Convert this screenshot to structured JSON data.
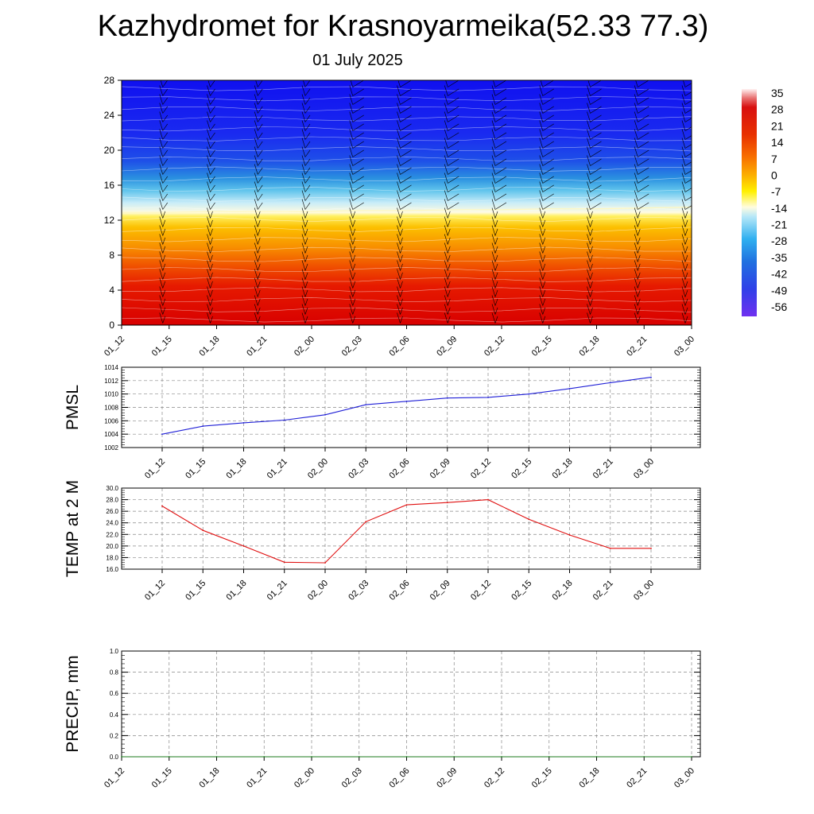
{
  "title": "Kazhydromet for Krasnoyarmeika(52.33 77.3)",
  "subtitle": "01 July 2025",
  "colors": {
    "pmsl_line": "#1f1fd6",
    "temp_line": "#e01010",
    "precip_line": "#1a7a1a",
    "grid": "#888888"
  },
  "chart_data": [
    {
      "type": "heatmap",
      "name": "cross-section",
      "x_ticks": [
        "01_12",
        "01_15",
        "01_18",
        "01_21",
        "02_00",
        "02_03",
        "02_06",
        "02_09",
        "02_12",
        "02_15",
        "02_18",
        "02_21",
        "03_00"
      ],
      "y_ticks": [
        "0",
        "4",
        "8",
        "12",
        "16",
        "20",
        "24",
        "28"
      ],
      "ylim": [
        0,
        28
      ],
      "colorbar_labels": [
        "35",
        "28",
        "21",
        "14",
        "7",
        "0",
        "-7",
        "-14",
        "-21",
        "-28",
        "-35",
        "-42",
        "-49",
        "-56"
      ],
      "freezing_level": [
        12.9,
        12.9,
        13.0,
        13.0,
        13.0,
        13.1,
        13.1,
        13.2,
        13.2,
        13.3,
        13.3,
        13.4,
        13.5
      ],
      "grid": false
    },
    {
      "type": "line",
      "ylabel": "PMSL",
      "x_ticks": [
        "01_12",
        "01_15",
        "01_18",
        "01_21",
        "02_00",
        "02_03",
        "02_06",
        "02_09",
        "02_12",
        "02_15",
        "02_18",
        "02_21",
        "03_00"
      ],
      "y_ticks": [
        "1002",
        "1004",
        "1006",
        "1008",
        "1010",
        "1012",
        "1014"
      ],
      "ylim": [
        1002,
        1014
      ],
      "values": [
        1004.0,
        1005.2,
        1005.7,
        1006.1,
        1006.9,
        1008.4,
        1008.9,
        1009.4,
        1009.5,
        1010.0,
        1010.8,
        1011.7,
        1012.5
      ],
      "grid": true
    },
    {
      "type": "line",
      "ylabel": "TEMP at 2 M",
      "x_ticks": [
        "01_12",
        "01_15",
        "01_18",
        "01_21",
        "02_00",
        "02_03",
        "02_06",
        "02_09",
        "02_12",
        "02_15",
        "02_18",
        "02_21",
        "03_00"
      ],
      "y_ticks": [
        "16.0",
        "18.0",
        "20.0",
        "22.0",
        "24.0",
        "26.0",
        "28.0",
        "30.0"
      ],
      "ylim": [
        16,
        30
      ],
      "values": [
        26.9,
        22.7,
        20.0,
        17.2,
        17.1,
        24.2,
        27.1,
        27.5,
        28.0,
        24.6,
        21.9,
        19.6,
        19.6
      ],
      "grid": true
    },
    {
      "type": "line",
      "ylabel": "PRECIP, mm",
      "x_ticks": [
        "01_12",
        "01_15",
        "01_18",
        "01_21",
        "02_00",
        "02_03",
        "02_06",
        "02_09",
        "02_12",
        "02_15",
        "02_18",
        "02_21",
        "03_00"
      ],
      "y_ticks": [
        "0.0",
        "0.2",
        "0.4",
        "0.6",
        "0.8",
        "1.0"
      ],
      "ylim": [
        0,
        1
      ],
      "values": [
        0,
        0,
        0,
        0,
        0,
        0,
        0,
        0,
        0,
        0,
        0,
        0,
        0
      ],
      "grid": true
    }
  ]
}
